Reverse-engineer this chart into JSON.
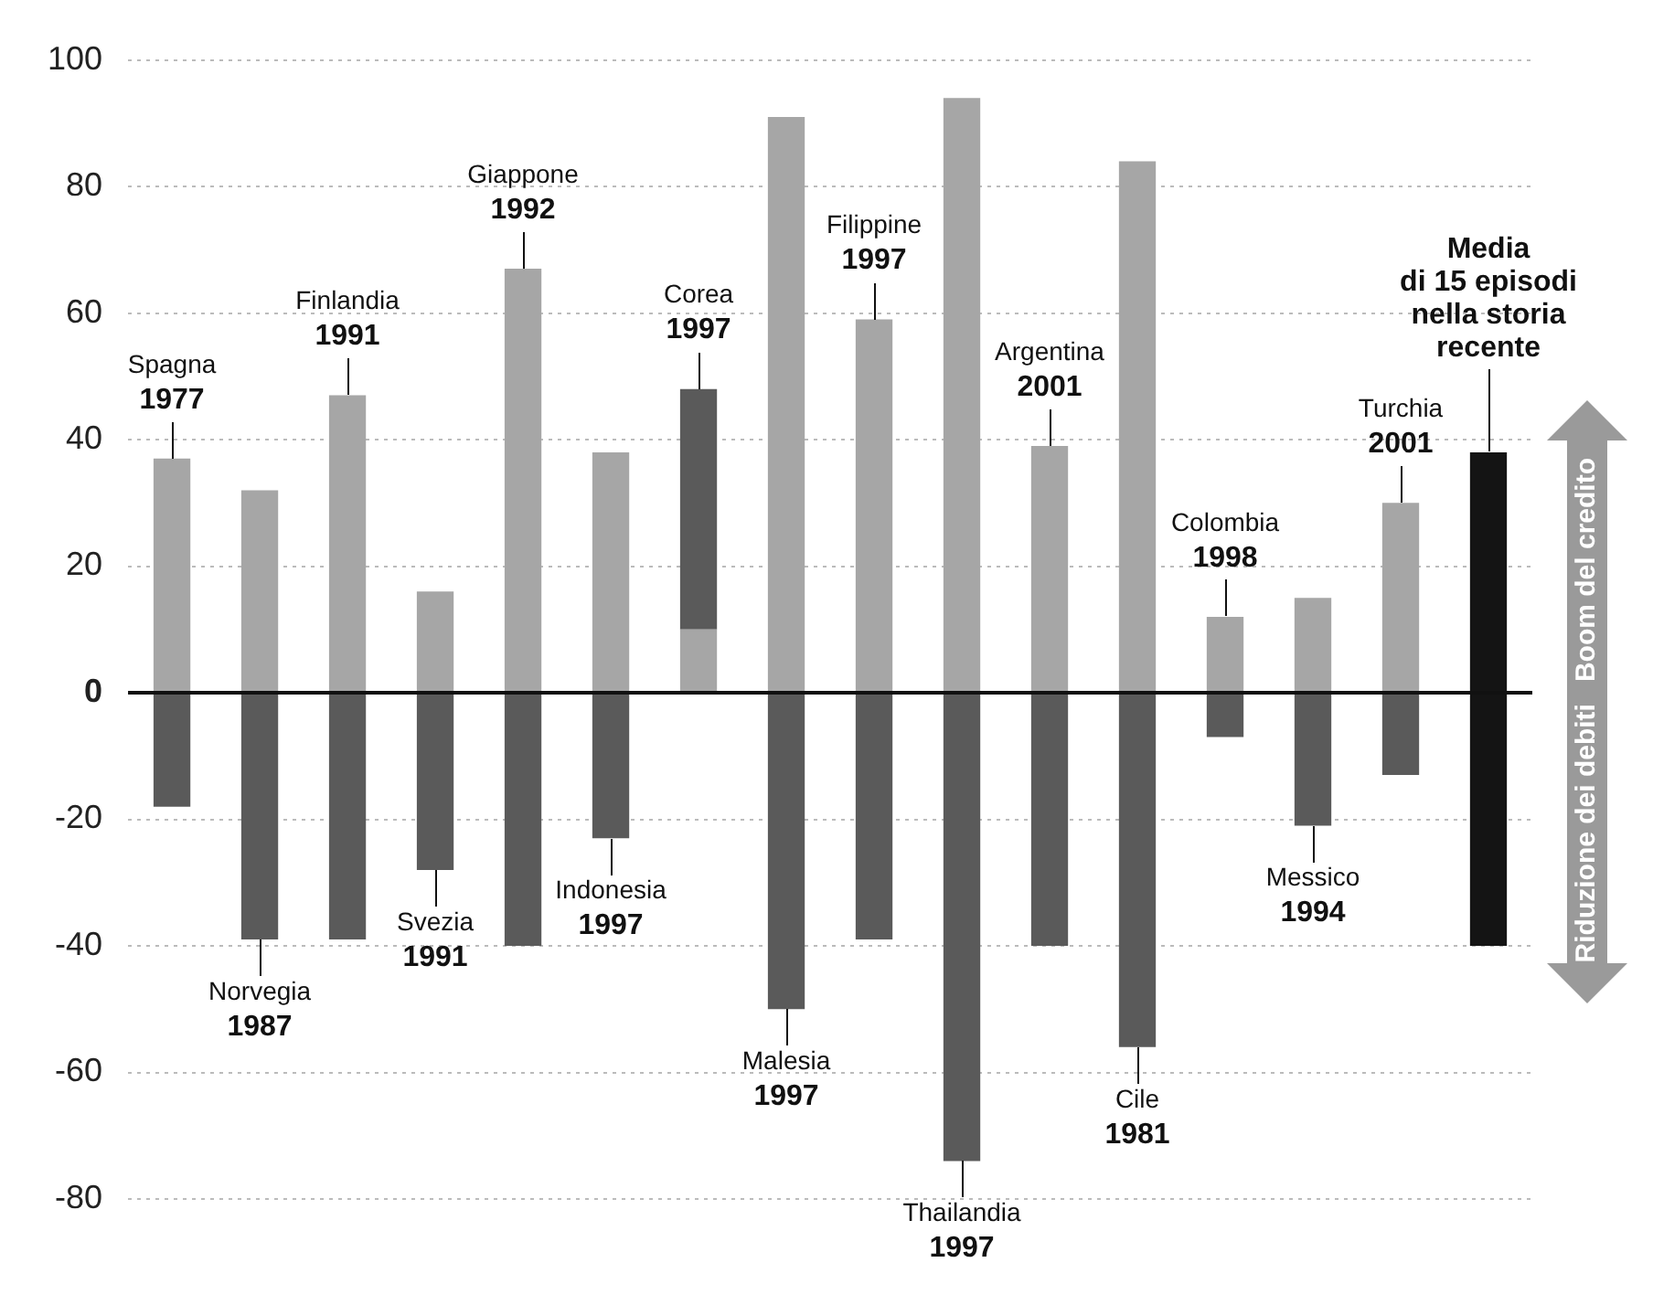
{
  "chart_data": {
    "type": "bar",
    "stacked": true,
    "tick_labels": "y",
    "grid": "y",
    "categories": [
      "Spagna\n1977",
      "Norvegia\n1987",
      "Finlandia\n1991",
      "Svezia\n1991",
      "Giappone\n1992",
      "Indonesia\n1997",
      "Corea\n1997",
      "Malesia\n1997",
      "Filippine\n1997",
      "Thailandia\n1997",
      "Argentina\n2001",
      "Cile\n1981",
      "Colombia\n1998",
      "Messico\n1994",
      "Turchia\n2001",
      "Media\ndi 15 episodi\nnella storia\nrecente"
    ],
    "series": [
      {
        "colors": [
          "#a6a6a6",
          "#a6a6a6",
          "#a6a6a6",
          "#a6a6a6",
          "#a6a6a6",
          "#a6a6a6",
          "#a6a6a6",
          "#a6a6a6",
          "#a6a6a6",
          "#a6a6a6",
          "#a6a6a6",
          "#a6a6a6",
          "#a6a6a6",
          "#a6a6a6",
          "#a6a6a6",
          "#141414"
        ],
        "values": [
          37,
          32,
          47,
          16,
          67,
          38,
          10,
          91,
          59,
          94,
          39,
          84,
          12,
          15,
          30,
          38
        ]
      },
      {
        "colors": [
          "#5a5a5a",
          "#5a5a5a",
          "#5a5a5a",
          "#5a5a5a",
          "#5a5a5a",
          "#5a5a5a",
          "#5a5a5a",
          "#5a5a5a",
          "#5a5a5a",
          "#5a5a5a",
          "#5a5a5a",
          "#5a5a5a",
          "#5a5a5a",
          "#5a5a5a",
          "#5a5a5a",
          "#141414"
        ],
        "values": [
          -18,
          -39,
          -39,
          -28,
          -40,
          -23,
          38,
          -50,
          -39,
          -74,
          -40,
          -56,
          -7,
          -21,
          -13,
          -40
        ]
      }
    ],
    "ylim": [
      -80,
      100
    ],
    "yticks": [
      -80,
      -60,
      -40,
      -20,
      0,
      20,
      40,
      60,
      80,
      100
    ],
    "ref_lines": [
      {
        "axis": "y",
        "value": 0,
        "color": "#111111"
      }
    ],
    "annotations": [
      "Boom del credito",
      "Riduzione dei debiti"
    ]
  }
}
